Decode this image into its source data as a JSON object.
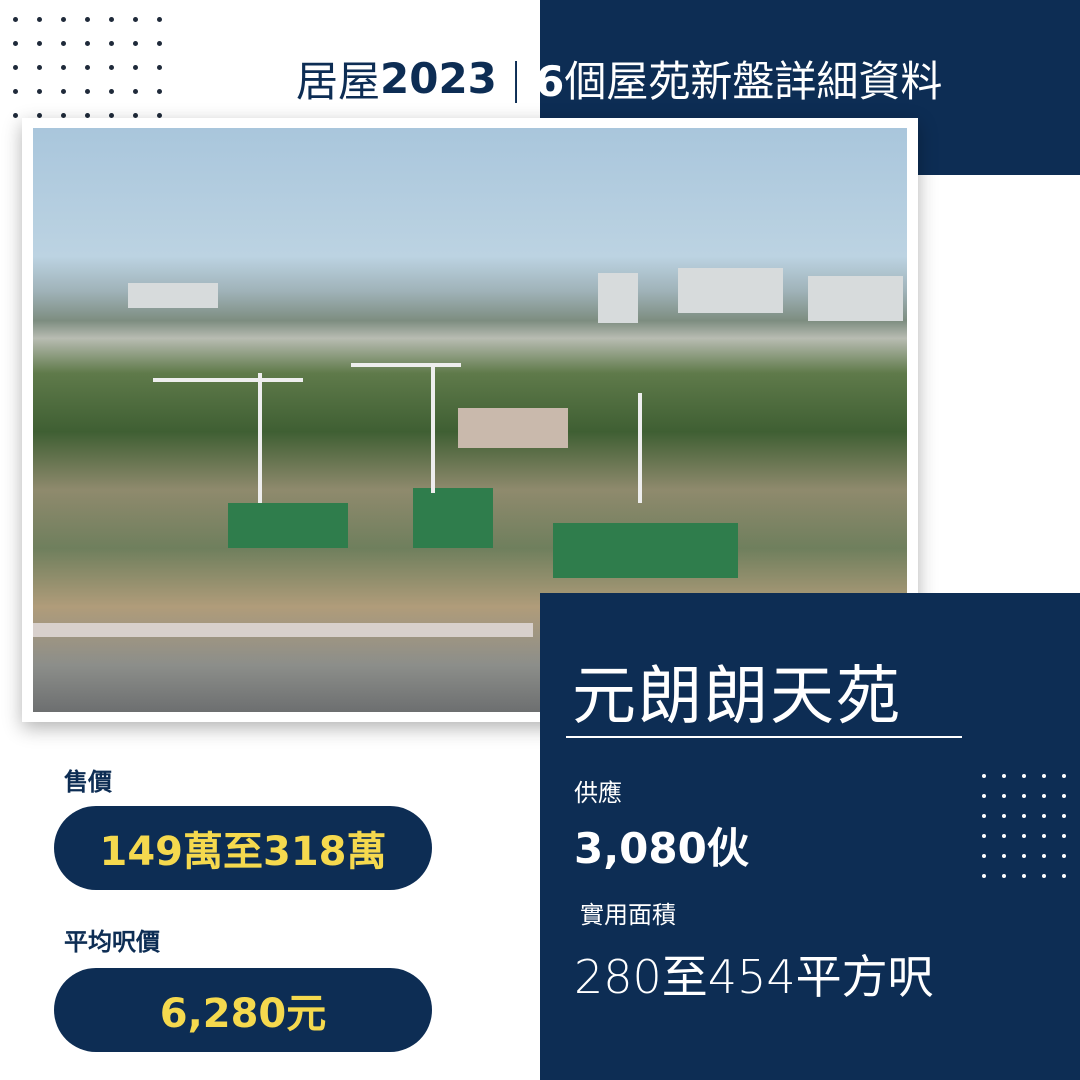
{
  "header": {
    "title_prefix": "居屋",
    "title_year": "2023",
    "title_separator": "|",
    "title_count": "6",
    "title_suffix": "個屋苑新盤詳細資料"
  },
  "estate": {
    "name": "元朗朗天苑",
    "supply_label": "供應",
    "supply_value": "3,080伙",
    "area_label": "實用面積",
    "area_value": "280至454平方呎"
  },
  "pricing": {
    "price_label": "售價",
    "price_value": "149萬至318萬",
    "psf_label": "平均呎價",
    "psf_value": "6,280元"
  },
  "colors": {
    "navy": "#0d2d54",
    "accent_yellow": "#f5d94e",
    "white": "#ffffff"
  }
}
